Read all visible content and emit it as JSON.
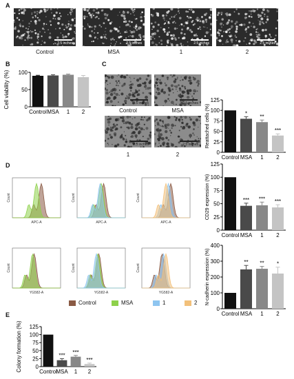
{
  "panels": {
    "A": {
      "letter": "A",
      "images": [
        {
          "label": "Control",
          "scale": "2.5 inches"
        },
        {
          "label": "MSA",
          "scale": "2.5 inches"
        },
        {
          "label": "1",
          "scale": "2.5 inches"
        },
        {
          "label": "2",
          "scale": "2.5 inches"
        }
      ]
    },
    "B": {
      "letter": "B"
    },
    "C": {
      "letter": "C",
      "images": [
        {
          "label": "Control",
          "scale": "2.5 inches"
        },
        {
          "label": "MSA",
          "scale": "2.5 inches"
        },
        {
          "label": "1",
          "scale": "2.5 inches"
        },
        {
          "label": "2",
          "scale": "2.5 inches"
        }
      ]
    },
    "D": {
      "letter": "D",
      "flow_top_xlabels": [
        "APC-A",
        "APC-A",
        "APC-A"
      ],
      "flow_bottom_xlabels": [
        "YG582-A",
        "YG582-A",
        "YG582-A"
      ],
      "flow_ylabel": "Count",
      "legend": [
        {
          "name": "Control",
          "color": "#8a5a44"
        },
        {
          "name": "MSA",
          "color": "#8ed14b"
        },
        {
          "name": "1",
          "color": "#8ec5f0"
        },
        {
          "name": "2",
          "color": "#f2c07a"
        }
      ]
    },
    "E": {
      "letter": "E"
    }
  },
  "chart_data": [
    {
      "id": "B",
      "type": "bar",
      "categories": [
        "Control",
        "MSA",
        "1",
        "2"
      ],
      "values": [
        90,
        91,
        93,
        86
      ],
      "errors": [
        1.5,
        2,
        2,
        5
      ],
      "ylabel": "Cell viability (%)",
      "ylim": [
        0,
        100
      ],
      "yticks": [
        0,
        50,
        100
      ],
      "colors": [
        "#111111",
        "#4a4a4a",
        "#888888",
        "#c4c4c4"
      ],
      "sig": [
        "",
        "",
        "",
        ""
      ]
    },
    {
      "id": "C",
      "type": "bar",
      "categories": [
        "Control",
        "MSA",
        "1",
        "2"
      ],
      "values": [
        100,
        80,
        72,
        40
      ],
      "errors": [
        0,
        5,
        5,
        4
      ],
      "ylabel": "Reattached cells (%)",
      "ylim": [
        0,
        125
      ],
      "yticks": [
        0,
        25,
        50,
        75,
        100,
        125
      ],
      "colors": [
        "#111111",
        "#4a4a4a",
        "#888888",
        "#c4c4c4"
      ],
      "sig": [
        "",
        "*",
        "**",
        "***"
      ]
    },
    {
      "id": "D-CD29",
      "type": "bar",
      "categories": [
        "Control",
        "MSA",
        "1",
        "2"
      ],
      "values": [
        100,
        46,
        47,
        43
      ],
      "errors": [
        0,
        5,
        6,
        5
      ],
      "ylabel": "CD29 expression (%)",
      "ylim": [
        0,
        125
      ],
      "yticks": [
        0,
        25,
        50,
        75,
        100,
        125
      ],
      "colors": [
        "#111111",
        "#4a4a4a",
        "#888888",
        "#c4c4c4"
      ],
      "sig": [
        "",
        "***",
        "***",
        "***"
      ]
    },
    {
      "id": "D-Ncad",
      "type": "bar",
      "categories": [
        "Control",
        "MSA",
        "1",
        "2"
      ],
      "values": [
        100,
        248,
        252,
        222
      ],
      "errors": [
        0,
        25,
        15,
        40
      ],
      "ylabel": "N-cadherin expression (%)",
      "ylim": [
        0,
        400
      ],
      "yticks": [
        0,
        100,
        200,
        300,
        400
      ],
      "colors": [
        "#111111",
        "#4a4a4a",
        "#888888",
        "#c4c4c4"
      ],
      "sig": [
        "",
        "**",
        "**",
        "*"
      ]
    },
    {
      "id": "E",
      "type": "bar",
      "categories": [
        "Control",
        "MSA",
        "1",
        "2"
      ],
      "values": [
        100,
        20,
        31,
        8
      ],
      "errors": [
        0,
        5,
        4,
        3
      ],
      "ylabel": "Colony formation (%)",
      "ylim": [
        0,
        125
      ],
      "yticks": [
        0,
        25,
        50,
        75,
        100,
        125
      ],
      "colors": [
        "#111111",
        "#4a4a4a",
        "#888888",
        "#c4c4c4"
      ],
      "sig": [
        "",
        "***",
        "***",
        "***"
      ]
    }
  ]
}
